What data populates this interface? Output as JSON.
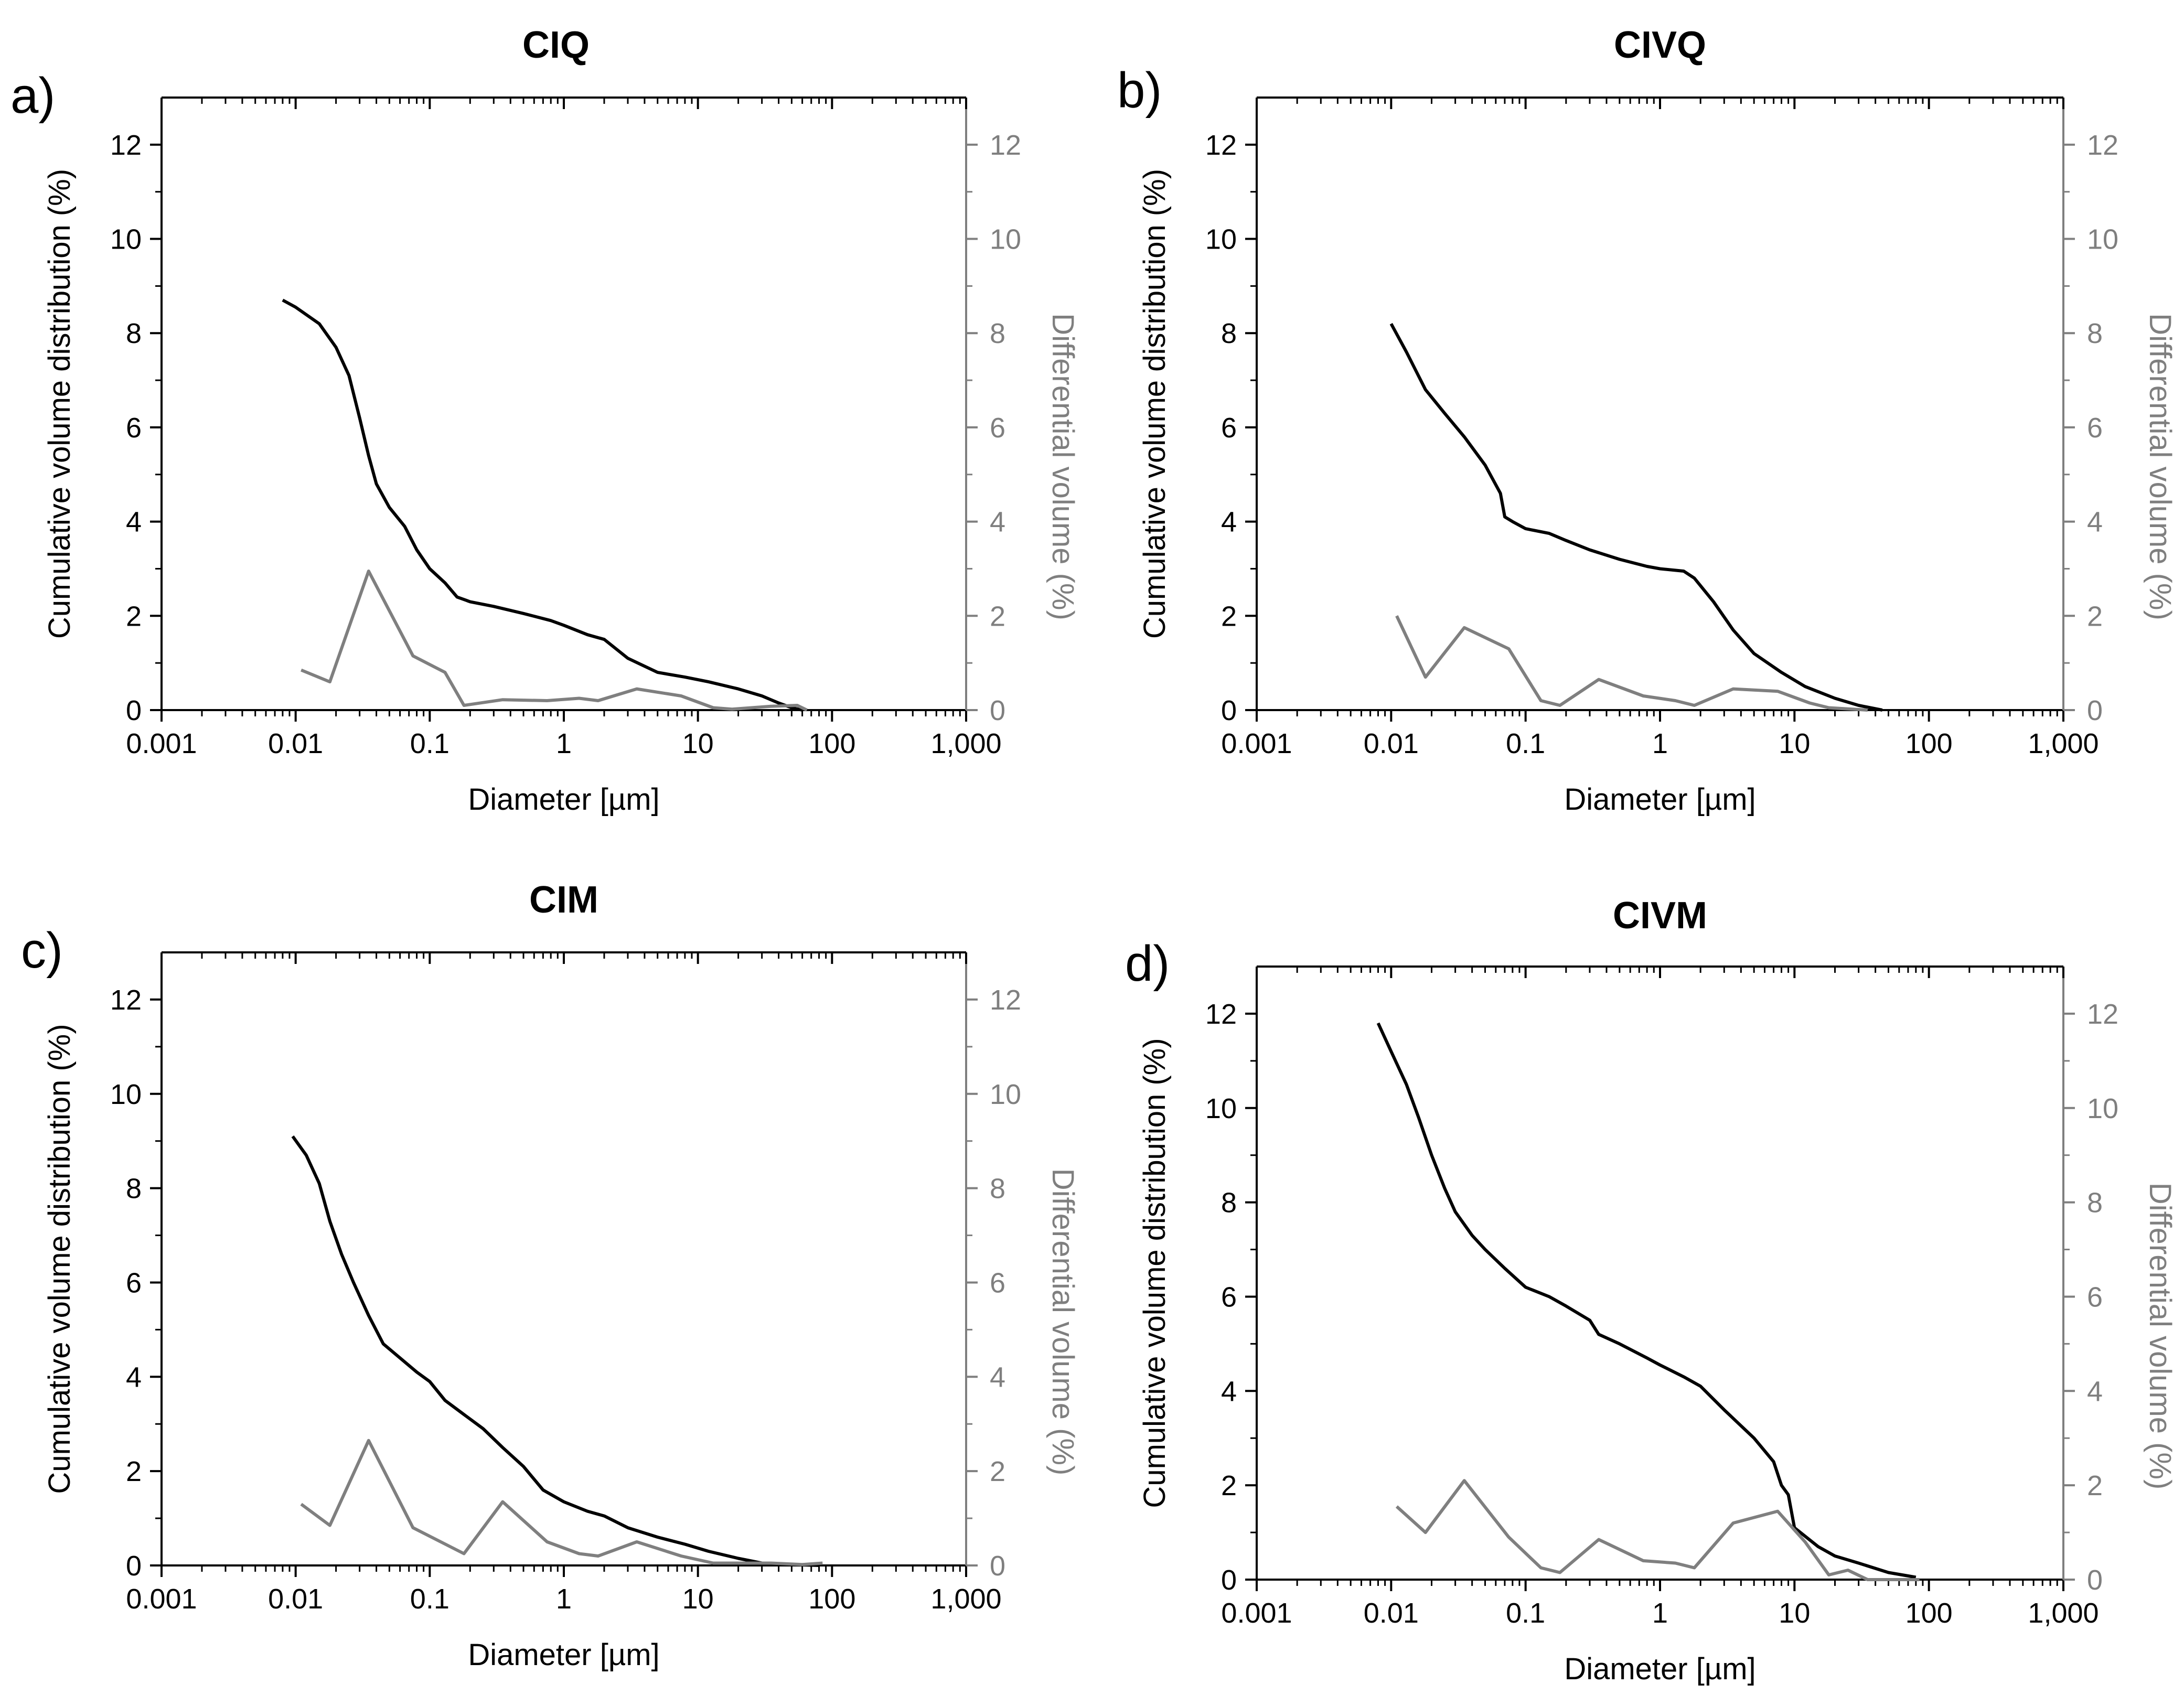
{
  "figure": {
    "colors": {
      "cumulative": "#000000",
      "differential": "#7f7f7f",
      "axis": "#000000",
      "right_axis": "#7f7f7f"
    }
  },
  "chart_data": [
    {
      "panel_label": "a)",
      "type": "line",
      "title": "CIQ",
      "xlabel": "Diameter [µm]",
      "ylabel": "Cumulative volume distribution (%)",
      "ylabel_right": "Differential volume (%)",
      "x_scale": "log",
      "xlim": [
        0.001,
        1000
      ],
      "ylim": [
        0,
        13
      ],
      "ylim_right": [
        0,
        13
      ],
      "x_ticks": [
        "0.001",
        "0.01",
        "0.1",
        "1",
        "10",
        "100",
        "1,000"
      ],
      "y_ticks": [
        "0",
        "2",
        "4",
        "6",
        "8",
        "10",
        "12"
      ],
      "y_ticks_right": [
        "0",
        "2",
        "4",
        "6",
        "8",
        "10",
        "12"
      ],
      "series": [
        {
          "name": "Cumulative volume distribution",
          "axis": "left",
          "x": [
            0.008,
            0.01,
            0.015,
            0.02,
            0.025,
            0.03,
            0.035,
            0.04,
            0.05,
            0.065,
            0.08,
            0.1,
            0.13,
            0.16,
            0.2,
            0.3,
            0.5,
            0.8,
            1.0,
            1.5,
            2.0,
            3.0,
            5.0,
            8.0,
            12.0,
            20.0,
            30.0,
            40.0,
            50.0,
            60.0
          ],
          "y": [
            8.7,
            8.55,
            8.2,
            7.7,
            7.1,
            6.2,
            5.4,
            4.8,
            4.3,
            3.9,
            3.4,
            3.0,
            2.7,
            2.4,
            2.3,
            2.2,
            2.05,
            1.9,
            1.8,
            1.6,
            1.5,
            1.1,
            0.8,
            0.7,
            0.6,
            0.45,
            0.3,
            0.15,
            0.05,
            0.0
          ]
        },
        {
          "name": "Differential volume",
          "axis": "right",
          "x": [
            0.011,
            0.018,
            0.035,
            0.075,
            0.13,
            0.18,
            0.35,
            0.75,
            1.3,
            1.8,
            3.5,
            7.5,
            13,
            18,
            35,
            55,
            65
          ],
          "y": [
            0.85,
            0.6,
            2.95,
            1.15,
            0.8,
            0.1,
            0.22,
            0.2,
            0.25,
            0.2,
            0.45,
            0.3,
            0.05,
            0.02,
            0.08,
            0.1,
            0.0
          ]
        }
      ]
    },
    {
      "panel_label": "b)",
      "type": "line",
      "title": "CIVQ",
      "xlabel": "Diameter [µm]",
      "ylabel": "Cumulative volume distribution (%)",
      "ylabel_right": "Differential volume (%)",
      "x_scale": "log",
      "xlim": [
        0.001,
        1000
      ],
      "ylim": [
        0,
        13
      ],
      "ylim_right": [
        0,
        13
      ],
      "x_ticks": [
        "0.001",
        "0.01",
        "0.1",
        "1",
        "10",
        "100",
        "1,000"
      ],
      "y_ticks": [
        "0",
        "2",
        "4",
        "6",
        "8",
        "10",
        "12"
      ],
      "y_ticks_right": [
        "0",
        "2",
        "4",
        "6",
        "8",
        "10",
        "12"
      ],
      "series": [
        {
          "name": "Cumulative volume distribution",
          "axis": "left",
          "x": [
            0.01,
            0.013,
            0.018,
            0.025,
            0.035,
            0.05,
            0.065,
            0.07,
            0.08,
            0.1,
            0.15,
            0.2,
            0.3,
            0.5,
            0.8,
            1.0,
            1.5,
            1.8,
            2.5,
            3.5,
            5.0,
            8.0,
            12.0,
            20.0,
            30.0,
            45.0
          ],
          "y": [
            8.2,
            7.6,
            6.8,
            6.3,
            5.8,
            5.2,
            4.6,
            4.1,
            4.0,
            3.85,
            3.75,
            3.6,
            3.4,
            3.2,
            3.05,
            3.0,
            2.95,
            2.8,
            2.3,
            1.7,
            1.2,
            0.8,
            0.5,
            0.25,
            0.1,
            0.0
          ]
        },
        {
          "name": "Differential volume",
          "axis": "right",
          "x": [
            0.011,
            0.018,
            0.035,
            0.075,
            0.13,
            0.18,
            0.35,
            0.75,
            1.3,
            1.8,
            3.5,
            7.5,
            13,
            18,
            35
          ],
          "y": [
            2.0,
            0.7,
            1.75,
            1.3,
            0.2,
            0.1,
            0.65,
            0.3,
            0.2,
            0.1,
            0.45,
            0.4,
            0.15,
            0.05,
            0.0
          ]
        }
      ]
    },
    {
      "panel_label": "c)",
      "type": "line",
      "title": "CIM",
      "xlabel": "Diameter [µm]",
      "ylabel": "Cumulative volume distribution (%)",
      "ylabel_right": "Differential volume (%)",
      "x_scale": "log",
      "xlim": [
        0.001,
        1000
      ],
      "ylim": [
        0,
        13
      ],
      "ylim_right": [
        0,
        13
      ],
      "x_ticks": [
        "0.001",
        "0.01",
        "0.1",
        "1",
        "10",
        "100",
        "1,000"
      ],
      "y_ticks": [
        "0",
        "2",
        "4",
        "6",
        "8",
        "10",
        "12"
      ],
      "y_ticks_right": [
        "0",
        "2",
        "4",
        "6",
        "8",
        "10",
        "12"
      ],
      "series": [
        {
          "name": "Cumulative volume distribution",
          "axis": "left",
          "x": [
            0.0095,
            0.012,
            0.015,
            0.018,
            0.022,
            0.027,
            0.035,
            0.045,
            0.06,
            0.08,
            0.1,
            0.13,
            0.18,
            0.25,
            0.35,
            0.5,
            0.7,
            1.0,
            1.5,
            2.0,
            3.0,
            5.0,
            8.0,
            12.0,
            20.0,
            30.0,
            50.0,
            80.0
          ],
          "y": [
            9.1,
            8.7,
            8.1,
            7.3,
            6.6,
            6.0,
            5.3,
            4.7,
            4.4,
            4.1,
            3.9,
            3.5,
            3.2,
            2.9,
            2.5,
            2.1,
            1.6,
            1.35,
            1.15,
            1.05,
            0.8,
            0.6,
            0.45,
            0.3,
            0.15,
            0.05,
            0.02,
            0.0
          ]
        },
        {
          "name": "Differential volume",
          "axis": "right",
          "x": [
            0.011,
            0.018,
            0.035,
            0.075,
            0.18,
            0.35,
            0.75,
            1.3,
            1.8,
            3.5,
            7.5,
            13,
            20,
            35,
            60,
            85
          ],
          "y": [
            1.3,
            0.85,
            2.65,
            0.8,
            0.25,
            1.35,
            0.5,
            0.25,
            0.2,
            0.5,
            0.2,
            0.05,
            0.05,
            0.05,
            0.02,
            0.05
          ]
        }
      ]
    },
    {
      "panel_label": "d)",
      "type": "line",
      "title": "CIVM",
      "xlabel": "Diameter [µm]",
      "ylabel": "Cumulative volume distribution (%)",
      "ylabel_right": "Differential volume (%)",
      "x_scale": "log",
      "xlim": [
        0.001,
        1000
      ],
      "ylim": [
        0,
        13
      ],
      "ylim_right": [
        0,
        13
      ],
      "x_ticks": [
        "0.001",
        "0.01",
        "0.1",
        "1",
        "10",
        "100",
        "1,000"
      ],
      "y_ticks": [
        "0",
        "2",
        "4",
        "6",
        "8",
        "10",
        "12"
      ],
      "y_ticks_right": [
        "0",
        "2",
        "4",
        "6",
        "8",
        "10",
        "12"
      ],
      "series": [
        {
          "name": "Cumulative volume distribution",
          "axis": "left",
          "x": [
            0.008,
            0.01,
            0.013,
            0.016,
            0.02,
            0.025,
            0.03,
            0.04,
            0.05,
            0.07,
            0.1,
            0.15,
            0.2,
            0.3,
            0.35,
            0.5,
            0.8,
            1.0,
            1.5,
            2.0,
            3.0,
            5.0,
            7.0,
            8.0,
            9.0,
            10.0,
            15.0,
            20.0,
            30.0,
            50.0,
            80.0
          ],
          "y": [
            11.8,
            11.2,
            10.5,
            9.8,
            9.0,
            8.3,
            7.8,
            7.3,
            7.0,
            6.6,
            6.2,
            6.0,
            5.8,
            5.5,
            5.2,
            5.0,
            4.7,
            4.55,
            4.3,
            4.1,
            3.6,
            3.0,
            2.5,
            2.0,
            1.8,
            1.1,
            0.7,
            0.5,
            0.35,
            0.15,
            0.05
          ]
        },
        {
          "name": "Differential volume",
          "axis": "right",
          "x": [
            0.011,
            0.018,
            0.035,
            0.075,
            0.13,
            0.18,
            0.35,
            0.75,
            1.3,
            1.8,
            3.5,
            7.5,
            12,
            18,
            25,
            35,
            60,
            85
          ],
          "y": [
            1.55,
            1.0,
            2.1,
            0.9,
            0.25,
            0.15,
            0.85,
            0.4,
            0.35,
            0.25,
            1.2,
            1.45,
            0.8,
            0.1,
            0.2,
            0.0,
            0.0,
            0.0
          ]
        }
      ]
    }
  ]
}
